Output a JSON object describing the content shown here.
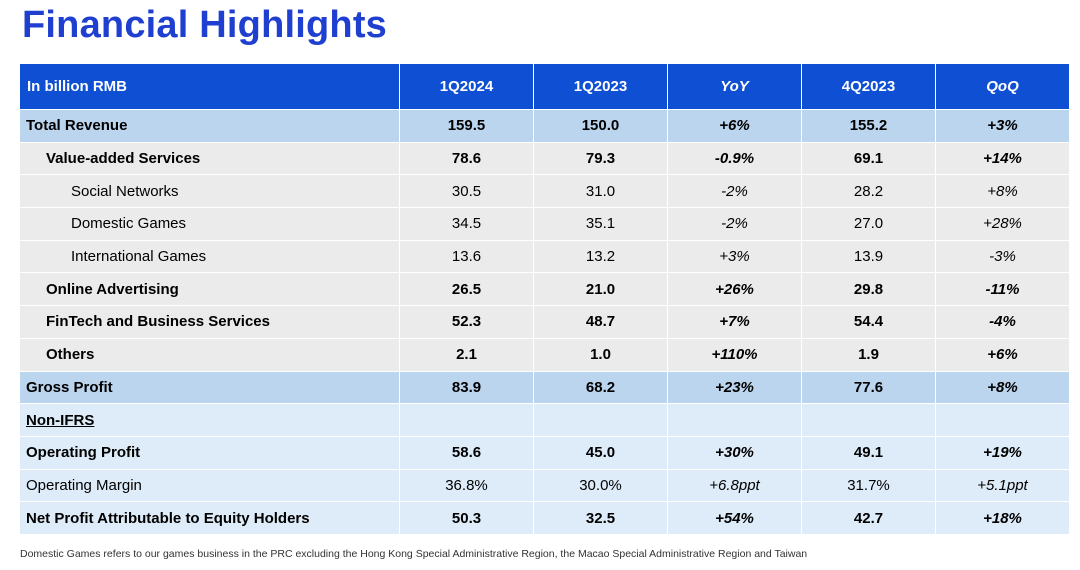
{
  "title": "Financial Highlights",
  "table": {
    "headers": [
      "In billion RMB",
      "1Q2024",
      "1Q2023",
      "YoY",
      "4Q2023",
      "QoQ"
    ],
    "rows": [
      {
        "label": "Total Revenue",
        "values": [
          "159.5",
          "150.0",
          "+6%",
          "155.2",
          "+3%"
        ]
      },
      {
        "label": "Value-added Services",
        "values": [
          "78.6",
          "79.3",
          "-0.9%",
          "69.1",
          "+14%"
        ]
      },
      {
        "label": "Social Networks",
        "values": [
          "30.5",
          "31.0",
          "-2%",
          "28.2",
          "+8%"
        ]
      },
      {
        "label": "Domestic Games",
        "values": [
          "34.5",
          "35.1",
          "-2%",
          "27.0",
          "+28%"
        ]
      },
      {
        "label": "International Games",
        "values": [
          "13.6",
          "13.2",
          "+3%",
          "13.9",
          "-3%"
        ]
      },
      {
        "label": "Online Advertising",
        "values": [
          "26.5",
          "21.0",
          "+26%",
          "29.8",
          "-11%"
        ]
      },
      {
        "label": "FinTech and Business Services",
        "values": [
          "52.3",
          "48.7",
          "+7%",
          "54.4",
          "-4%"
        ]
      },
      {
        "label": "Others",
        "values": [
          "2.1",
          "1.0",
          "+110%",
          "1.9",
          "+6%"
        ]
      },
      {
        "label": "Gross Profit",
        "values": [
          "83.9",
          "68.2",
          "+23%",
          "77.6",
          "+8%"
        ]
      },
      {
        "label": "Non-IFRS",
        "values": [
          "",
          "",
          "",
          "",
          ""
        ]
      },
      {
        "label": "Operating Profit",
        "values": [
          "58.6",
          "45.0",
          "+30%",
          "49.1",
          "+19%"
        ]
      },
      {
        "label": "Operating Margin",
        "values": [
          "36.8%",
          "30.0%",
          "+6.8ppt",
          "31.7%",
          "+5.1ppt"
        ]
      },
      {
        "label": "Net Profit Attributable to Equity Holders",
        "values": [
          "50.3",
          "32.5",
          "+54%",
          "42.7",
          "+18%"
        ]
      }
    ]
  },
  "footnote": "Domestic Games refers to our games business in the PRC excluding the Hong Kong Special Administrative Region, the Macao Special Administrative Region and Taiwan"
}
